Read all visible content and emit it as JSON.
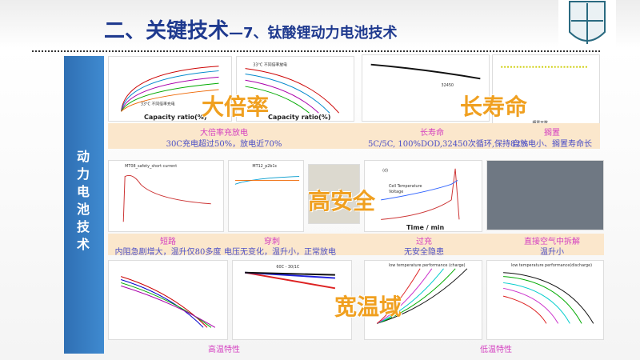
{
  "title": {
    "main": "二、关键技术",
    "sub": "—7、钛酸锂动力电池技术"
  },
  "sidebar_label": "动力电池技术",
  "overlays": [
    "大倍率",
    "长寿命",
    "高安全",
    "宽温域"
  ],
  "row1": {
    "charts": [
      "33°C 不同倍率充电",
      "33°C 不同倍率放电",
      "Capacity ratio(%)",
      "搁置天数"
    ],
    "captions": [
      {
        "title": "大倍率充放电",
        "text": "30C充电超过50%，放电近70%"
      },
      {
        "title": "长寿命",
        "text": "5C/5C, 100%DOD,32450次循环,保持82%"
      },
      {
        "title": "搁置",
        "text": "自放电小、搁置寿命长"
      }
    ]
  },
  "row2": {
    "charts": [
      "MT08_safety_short current",
      "MT12_p2b1c",
      "(d)",
      "Cell Temperature",
      "Voltage",
      "Time / min"
    ],
    "captions": [
      {
        "title": "短路",
        "text": "内阻急剧增大，温升仅80多度"
      },
      {
        "title": "穿刺",
        "text": "电压无变化，温升小，正常放电"
      },
      {
        "title": "过充",
        "text": "无安全隐患"
      },
      {
        "title": "直接空气中拆解",
        "text": "温升小"
      }
    ]
  },
  "row3": {
    "charts": [
      "60C - 30/1C",
      "low temperature performance (charge)",
      "low temperature performance(discharge)"
    ],
    "captions": [
      "高温特性",
      "低温特性"
    ]
  },
  "colors": {
    "title": "#1f3a8f",
    "sidebar": "#2f6fb3",
    "band": "#fbe7cc",
    "caption_title": "#d43fc0",
    "caption_text": "#4b4fc7",
    "overlay": "#f0a020"
  }
}
